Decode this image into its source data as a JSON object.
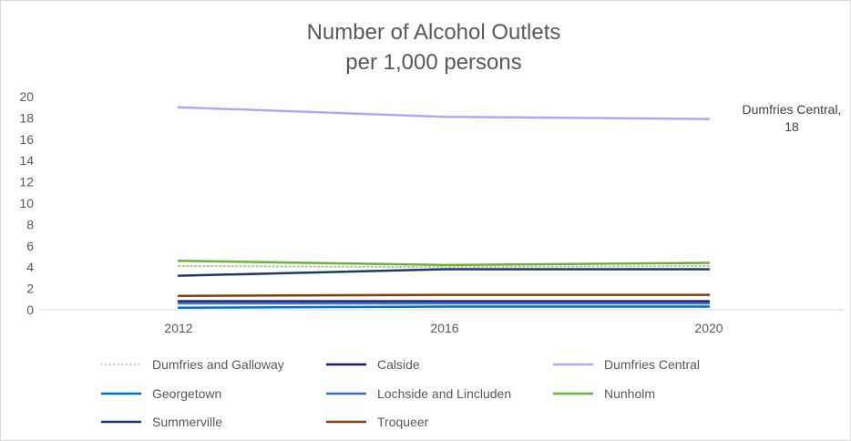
{
  "chart_data": {
    "type": "line",
    "title_lines": [
      "Number of Alcohol Outlets",
      "per 1,000 persons"
    ],
    "categories": [
      "2012",
      "2016",
      "2020"
    ],
    "ylim": [
      0,
      20
    ],
    "yticks": [
      0,
      2,
      4,
      6,
      8,
      10,
      12,
      14,
      16,
      18,
      20
    ],
    "grid": false,
    "legend_position": "bottom",
    "series": [
      {
        "name": "Dumfries and Galloway",
        "values": [
          4.1,
          4.0,
          4.1
        ],
        "color": "#a9d18e",
        "dash": "dotted"
      },
      {
        "name": "Calside",
        "values": [
          0.8,
          0.8,
          0.8
        ],
        "color": "#1f1a6b",
        "dash": "solid"
      },
      {
        "name": "Dumfries Central",
        "values": [
          19.0,
          18.1,
          17.9
        ],
        "color": "#b4a7f2",
        "dash": "solid"
      },
      {
        "name": "Georgetown",
        "values": [
          0.2,
          0.3,
          0.3
        ],
        "color": "#0070c0",
        "dash": "solid"
      },
      {
        "name": "Lochside and Lincluden",
        "values": [
          0.6,
          0.6,
          0.6
        ],
        "color": "#4472c4",
        "dash": "solid"
      },
      {
        "name": "Nunholm",
        "values": [
          4.6,
          4.2,
          4.4
        ],
        "color": "#70ad47",
        "dash": "solid"
      },
      {
        "name": "Summerville",
        "values": [
          3.2,
          3.8,
          3.8
        ],
        "color": "#203864",
        "dash": "solid"
      },
      {
        "name": "Troqueer",
        "values": [
          1.3,
          1.4,
          1.4
        ],
        "color": "#843c0c",
        "dash": "solid"
      }
    ],
    "annotations": [
      {
        "series": "Dumfries Central",
        "text_lines": [
          "Dumfries Central,",
          "18"
        ]
      }
    ]
  }
}
